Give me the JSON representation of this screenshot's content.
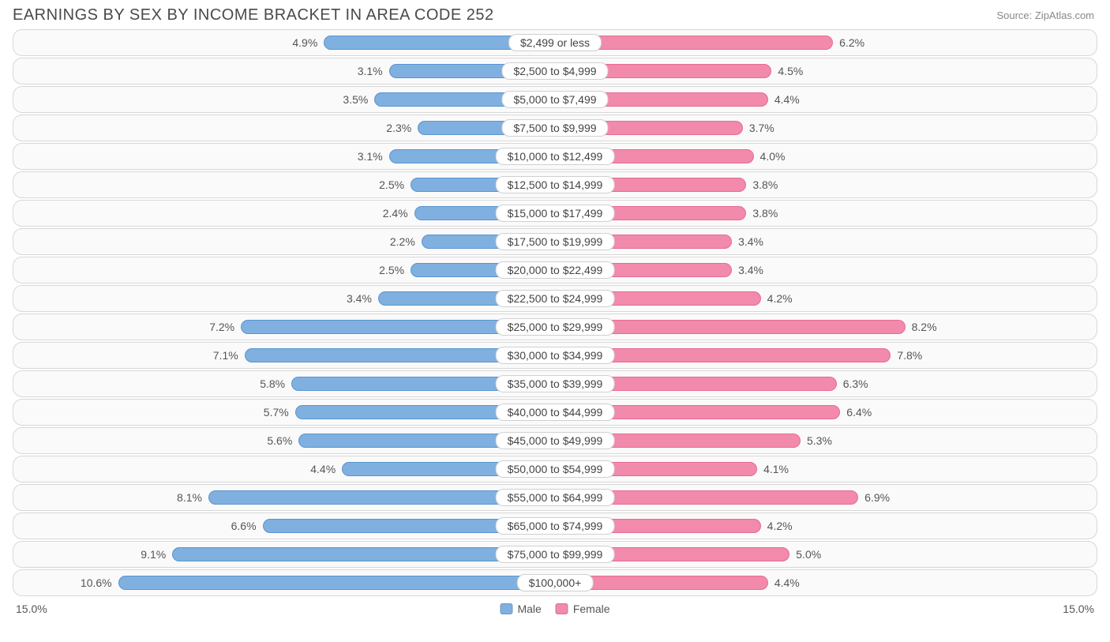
{
  "title": "EARNINGS BY SEX BY INCOME BRACKET IN AREA CODE 252",
  "source": "Source: ZipAtlas.com",
  "axis_max_percent": 15.0,
  "axis_label_left": "15.0%",
  "axis_label_right": "15.0%",
  "center_label_halfwidth_percent": 1.5,
  "colors": {
    "male_bar": "#7fb0e0",
    "male_border": "#5a94cf",
    "female_bar": "#f28aab",
    "female_border": "#e76a93",
    "row_border": "#d7d7d7",
    "row_bg": "#fafafa",
    "text": "#555555",
    "title": "#4a4a4a"
  },
  "legend": {
    "male": "Male",
    "female": "Female"
  },
  "rows": [
    {
      "label": "$2,499 or less",
      "male": 4.9,
      "female": 6.2
    },
    {
      "label": "$2,500 to $4,999",
      "male": 3.1,
      "female": 4.5
    },
    {
      "label": "$5,000 to $7,499",
      "male": 3.5,
      "female": 4.4
    },
    {
      "label": "$7,500 to $9,999",
      "male": 2.3,
      "female": 3.7
    },
    {
      "label": "$10,000 to $12,499",
      "male": 3.1,
      "female": 4.0
    },
    {
      "label": "$12,500 to $14,999",
      "male": 2.5,
      "female": 3.8
    },
    {
      "label": "$15,000 to $17,499",
      "male": 2.4,
      "female": 3.8
    },
    {
      "label": "$17,500 to $19,999",
      "male": 2.2,
      "female": 3.4
    },
    {
      "label": "$20,000 to $22,499",
      "male": 2.5,
      "female": 3.4
    },
    {
      "label": "$22,500 to $24,999",
      "male": 3.4,
      "female": 4.2
    },
    {
      "label": "$25,000 to $29,999",
      "male": 7.2,
      "female": 8.2
    },
    {
      "label": "$30,000 to $34,999",
      "male": 7.1,
      "female": 7.8
    },
    {
      "label": "$35,000 to $39,999",
      "male": 5.8,
      "female": 6.3
    },
    {
      "label": "$40,000 to $44,999",
      "male": 5.7,
      "female": 6.4
    },
    {
      "label": "$45,000 to $49,999",
      "male": 5.6,
      "female": 5.3
    },
    {
      "label": "$50,000 to $54,999",
      "male": 4.4,
      "female": 4.1
    },
    {
      "label": "$55,000 to $64,999",
      "male": 8.1,
      "female": 6.9
    },
    {
      "label": "$65,000 to $74,999",
      "male": 6.6,
      "female": 4.2
    },
    {
      "label": "$75,000 to $99,999",
      "male": 9.1,
      "female": 5.0
    },
    {
      "label": "$100,000+",
      "male": 10.6,
      "female": 4.4
    }
  ]
}
